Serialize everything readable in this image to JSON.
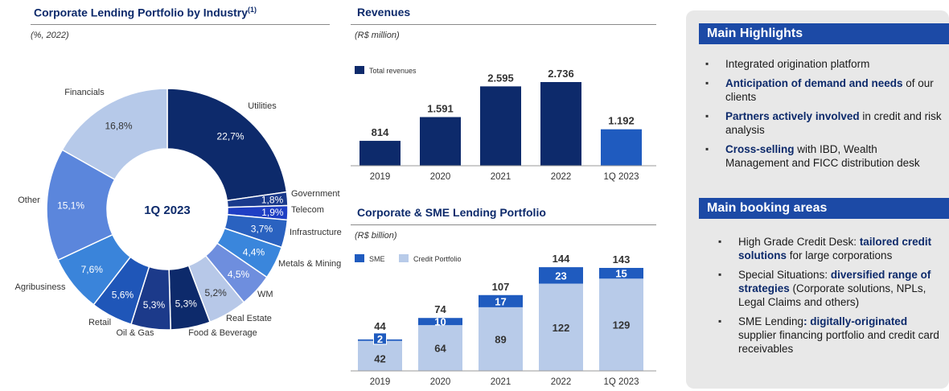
{
  "pie": {
    "title": "Corporate Lending Portfolio by Industry",
    "title_sup": "(1)",
    "subtitle": "(%, 2022)",
    "center_label": "1Q 2023"
  },
  "revenues": {
    "title": "Revenues",
    "subtitle": "(R$ million)"
  },
  "lending": {
    "title": "Corporate & SME Lending Portfolio",
    "subtitle": "(R$ billion)"
  },
  "highlights": {
    "title": "Main Highlights",
    "items": [
      {
        "plain_before": "Integrated origination platform",
        "bold": "",
        "plain_after": ""
      },
      {
        "plain_before": "",
        "bold": "Anticipation of demand and needs",
        "plain_after": " of our clients"
      },
      {
        "plain_before": "",
        "bold": "Partners actively involved",
        "plain_after": " in credit and risk analysis"
      },
      {
        "plain_before": "",
        "bold": "Cross-selling",
        "plain_after": " with IBD, Wealth Management and FICC distribution desk"
      }
    ]
  },
  "booking": {
    "title": "Main booking areas",
    "items": [
      {
        "plain_before": "High Grade Credit Desk: ",
        "bold": "tailored credit solutions",
        "plain_after": " for large corporations"
      },
      {
        "plain_before": "Special Situations: ",
        "bold": "diversified range of strategies",
        "plain_after": " (Corporate solutions, NPLs, Legal Claims and others)"
      },
      {
        "plain_before": "SME Lending",
        "bold": ": digitally-originated",
        "plain_after": " supplier financing portfolio and credit card receivables"
      }
    ]
  },
  "chart_data": [
    {
      "type": "pie",
      "title": "Corporate Lending Portfolio by Industry",
      "subtitle": "(%, 2022)",
      "center_label": "1Q 2023",
      "slices": [
        {
          "name": "Utilities",
          "value": 22.7,
          "label": "22,7%",
          "color": "#0d2a6b"
        },
        {
          "name": "Government",
          "value": 1.8,
          "label": "1,8%",
          "color": "#1a3a8c"
        },
        {
          "name": "Telecom",
          "value": 1.9,
          "label": "1,9%",
          "color": "#1f3fc4"
        },
        {
          "name": "Infrastructure",
          "value": 3.7,
          "label": "3,7%",
          "color": "#2a62c0"
        },
        {
          "name": "Metals & Mining",
          "value": 4.4,
          "label": "4,4%",
          "color": "#3a86dc"
        },
        {
          "name": "WM",
          "value": 4.5,
          "label": "4,5%",
          "color": "#6e8ede"
        },
        {
          "name": "Real Estate",
          "value": 5.2,
          "label": "5,2%",
          "color": "#b7c8e8"
        },
        {
          "name": "Food & Beverage",
          "value": 5.3,
          "label": "5,3%",
          "color": "#0d2a6b"
        },
        {
          "name": "Oil & Gas",
          "value": 5.3,
          "label": "5,3%",
          "color": "#1c3a8a"
        },
        {
          "name": "Retail",
          "value": 5.6,
          "label": "5,6%",
          "color": "#1f56b8"
        },
        {
          "name": "Agribusiness",
          "value": 7.6,
          "label": "7,6%",
          "color": "#3a84da"
        },
        {
          "name": "Other",
          "value": 15.1,
          "label": "15,1%",
          "color": "#5b86dc"
        },
        {
          "name": "Financials",
          "value": 16.8,
          "label": "16,8%",
          "color": "#b6c9e9"
        }
      ]
    },
    {
      "type": "bar",
      "title": "Revenues",
      "subtitle": "(R$ million)",
      "legend": [
        "Total revenues"
      ],
      "categories": [
        "2019",
        "2020",
        "2021",
        "2022",
        "1Q 2023"
      ],
      "values": [
        814,
        1591,
        2595,
        2736,
        1192
      ],
      "value_labels": [
        "814",
        "1.591",
        "2.595",
        "2.736",
        "1.192"
      ],
      "colors": [
        "#0d2a6b",
        "#0d2a6b",
        "#0d2a6b",
        "#0d2a6b",
        "#1f5bbf"
      ],
      "ylim": [
        0,
        3000
      ]
    },
    {
      "type": "bar",
      "stacked": true,
      "title": "Corporate & SME Lending Portfolio",
      "subtitle": "(R$ billion)",
      "categories": [
        "2019",
        "2020",
        "2021",
        "2022",
        "1Q 2023"
      ],
      "series": [
        {
          "name": "Credit Portfolio",
          "values": [
            42,
            64,
            89,
            122,
            129
          ],
          "color": "#b8cbe9"
        },
        {
          "name": "SME",
          "values": [
            2,
            10,
            17,
            23,
            15
          ],
          "color": "#1f5bbf"
        }
      ],
      "totals": [
        44,
        74,
        107,
        144,
        143
      ],
      "ylim": [
        0,
        150
      ]
    }
  ]
}
